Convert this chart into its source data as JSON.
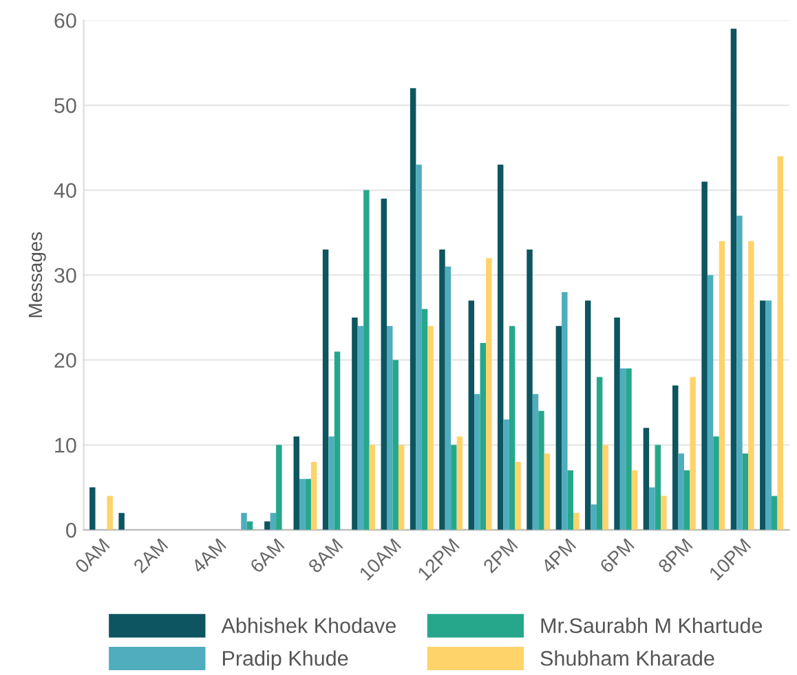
{
  "chart_data": {
    "type": "bar",
    "ylabel": "Messages",
    "categories": [
      "0AM",
      null,
      "2AM",
      null,
      "4AM",
      null,
      "6AM",
      null,
      "8AM",
      null,
      "10AM",
      null,
      "12PM",
      null,
      "2PM",
      null,
      "4PM",
      null,
      "6PM",
      null,
      "8PM",
      null,
      "10PM",
      null
    ],
    "series": [
      {
        "name": "Abhishek Khodave",
        "color": "#0d5560",
        "values": [
          5,
          2,
          0,
          0,
          0,
          0,
          1,
          11,
          33,
          25,
          39,
          52,
          33,
          27,
          43,
          33,
          24,
          27,
          25,
          12,
          17,
          41,
          59,
          27
        ]
      },
      {
        "name": "Pradip Khude",
        "color": "#4fadbd",
        "values": [
          0,
          0,
          0,
          0,
          0,
          2,
          2,
          6,
          11,
          24,
          24,
          43,
          31,
          16,
          13,
          16,
          28,
          3,
          19,
          5,
          9,
          30,
          37,
          27
        ]
      },
      {
        "name": "Mr.Saurabh M Khartude",
        "color": "#26a78c",
        "values": [
          0,
          0,
          0,
          0,
          0,
          1,
          10,
          6,
          21,
          40,
          20,
          26,
          10,
          22,
          24,
          14,
          7,
          18,
          19,
          10,
          7,
          11,
          9,
          4
        ]
      },
      {
        "name": "Shubham Kharade",
        "color": "#fed36a",
        "values": [
          4,
          0,
          0,
          0,
          0,
          0,
          0,
          8,
          0,
          10,
          10,
          24,
          11,
          32,
          8,
          9,
          2,
          10,
          7,
          4,
          18,
          34,
          34,
          44
        ]
      }
    ],
    "ylim": [
      0,
      60
    ],
    "yticks": [
      0,
      10,
      20,
      30,
      40,
      50,
      60
    ],
    "grid": "y",
    "legend": "bottom"
  }
}
